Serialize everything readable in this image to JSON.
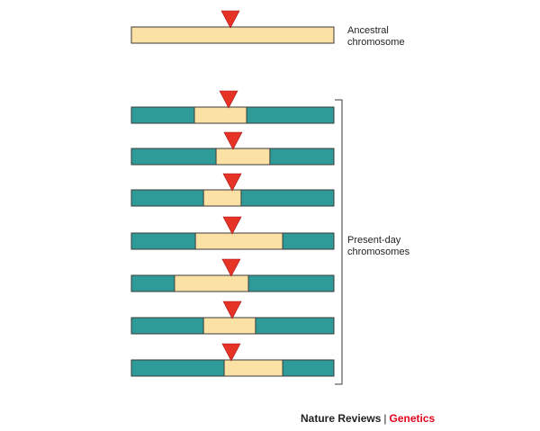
{
  "labels": {
    "ancestral_line1": "Ancestral",
    "ancestral_line2": "chromosome",
    "present_line1": "Present-day",
    "present_line2": "chromosomes"
  },
  "footer": {
    "journal": "Nature Reviews",
    "separator": "|",
    "section": "Genetics"
  },
  "colors": {
    "ancestral_segment": "#fbe2a4",
    "flanking_segment": "#2e9b99",
    "marker_triangle": "#e63325",
    "outline": "#3b3b3b",
    "footer_accent": "#e2001a"
  },
  "icons": {
    "marker": "inverted-red-triangle",
    "bracket": "right-square-bracket"
  },
  "diagram": {
    "ancestral_chromosome": {
      "marker_position": 0.489
    },
    "present_day_chromosomes": [
      {
        "ancestral_start": 0.311,
        "ancestral_end": 0.569,
        "marker_position": 0.48
      },
      {
        "ancestral_start": 0.418,
        "ancestral_end": 0.684,
        "marker_position": 0.502
      },
      {
        "ancestral_start": 0.356,
        "ancestral_end": 0.542,
        "marker_position": 0.498
      },
      {
        "ancestral_start": 0.316,
        "ancestral_end": 0.747,
        "marker_position": 0.498
      },
      {
        "ancestral_start": 0.213,
        "ancestral_end": 0.578,
        "marker_position": 0.493
      },
      {
        "ancestral_start": 0.356,
        "ancestral_end": 0.613,
        "marker_position": 0.498
      },
      {
        "ancestral_start": 0.458,
        "ancestral_end": 0.747,
        "marker_position": 0.493
      }
    ]
  }
}
